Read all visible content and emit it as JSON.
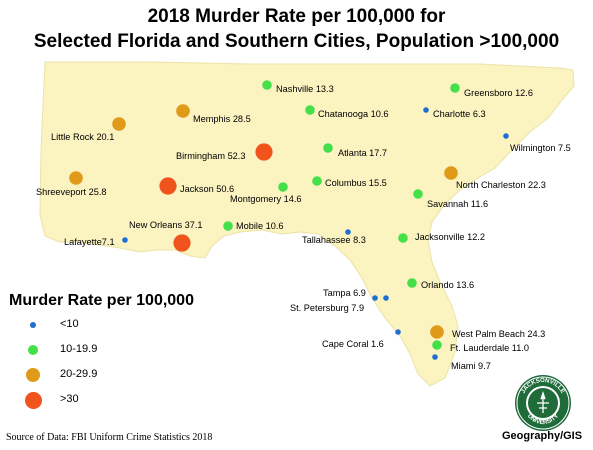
{
  "title": {
    "line1": "2018 Murder Rate per 100,000 for",
    "line2": "Selected Florida and Southern Cities, Population >100,000"
  },
  "legend": {
    "title": "Murder Rate per 100,000",
    "items": [
      {
        "label": "<10",
        "color": "#1f6fd1",
        "size": "small"
      },
      {
        "label": "10-19.9",
        "color": "#44e04a",
        "size": "medium"
      },
      {
        "label": "20-29.9",
        "color": "#e09a1a",
        "size": "large"
      },
      {
        "label": ">30",
        "color": "#f0531c",
        "size": "xlarge"
      }
    ]
  },
  "cities": [
    {
      "label": "Nashville 13.3",
      "rate": 13.3,
      "category": "10-19.9"
    },
    {
      "label": "Greensboro 12.6",
      "rate": 12.6,
      "category": "10-19.9"
    },
    {
      "label": "Memphis 28.5",
      "rate": 28.5,
      "category": "20-29.9"
    },
    {
      "label": "Chatanooga 10.6",
      "rate": 10.6,
      "category": "10-19.9"
    },
    {
      "label": "Charlotte 6.3",
      "rate": 6.3,
      "category": "<10"
    },
    {
      "label": "Little Rock 20.1",
      "rate": 20.1,
      "category": "20-29.9"
    },
    {
      "label": "Wilmington 7.5",
      "rate": 7.5,
      "category": "<10"
    },
    {
      "label": "Birmingham 52.3",
      "rate": 52.3,
      "category": ">30"
    },
    {
      "label": "Atlanta 17.7",
      "rate": 17.7,
      "category": "10-19.9"
    },
    {
      "label": "Columbus 15.5",
      "rate": 15.5,
      "category": "10-19.9"
    },
    {
      "label": "Shreeveport 25.8",
      "rate": 25.8,
      "category": "20-29.9"
    },
    {
      "label": "Jackson 50.6",
      "rate": 50.6,
      "category": ">30"
    },
    {
      "label": "Montgomery 14.6",
      "rate": 14.6,
      "category": "10-19.9"
    },
    {
      "label": "North Charleston 22.3",
      "rate": 22.3,
      "category": "20-29.9"
    },
    {
      "label": "Savannah 11.6",
      "rate": 11.6,
      "category": "10-19.9"
    },
    {
      "label": "New Orleans 37.1",
      "rate": 37.1,
      "category": ">30"
    },
    {
      "label": "Mobile 10.6",
      "rate": 10.6,
      "category": "10-19.9"
    },
    {
      "label": "Lafayette7.1",
      "rate": 7.1,
      "category": "<10"
    },
    {
      "label": "Tallahassee 8.3",
      "rate": 8.3,
      "category": "<10"
    },
    {
      "label": "Jacksonville 12.2",
      "rate": 12.2,
      "category": "10-19.9"
    },
    {
      "label": "Orlando 13.6",
      "rate": 13.6,
      "category": "10-19.9"
    },
    {
      "label": "Tampa 6.9",
      "rate": 6.9,
      "category": "<10"
    },
    {
      "label": "St. Petersburg 7.9",
      "rate": 7.9,
      "category": "<10"
    },
    {
      "label": "West Palm Beach 24.3",
      "rate": 24.3,
      "category": "20-29.9"
    },
    {
      "label": "Cape Coral 1.6",
      "rate": 1.6,
      "category": "<10"
    },
    {
      "label": "Ft. Lauderdale 11.0",
      "rate": 11.0,
      "category": "10-19.9"
    },
    {
      "label": "Miami 9.7",
      "rate": 9.7,
      "category": "<10"
    }
  ],
  "source": "Source of Data: FBI Uniform Crime Statistics 2018",
  "credit": "Geography/GIS",
  "seal": {
    "text_top": "JACKSONVILLE",
    "text_bottom": "UNIVERSITY",
    "color": "#1f6b3a"
  },
  "colors": {
    "land": "#fbf3c0",
    "land_border": "#ebe3a6"
  }
}
